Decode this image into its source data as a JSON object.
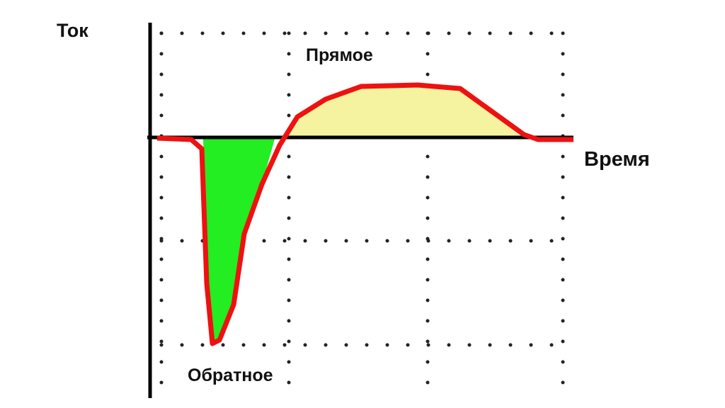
{
  "axes": {
    "y_label": "Ток",
    "x_label": "Время"
  },
  "regions": {
    "forward": "Прямое",
    "reverse": "Обратное"
  }
}
